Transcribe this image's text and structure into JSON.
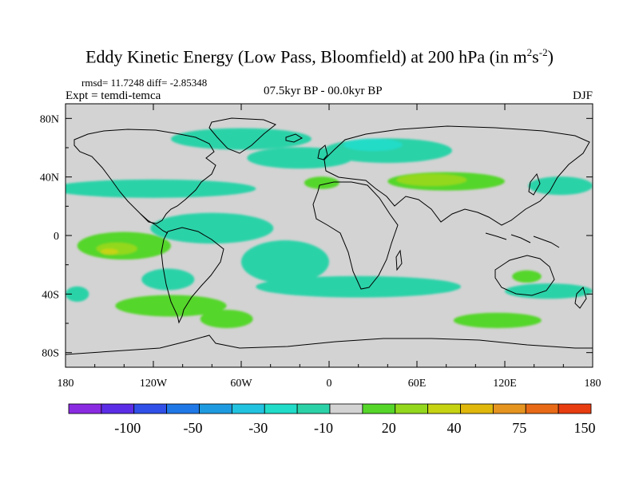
{
  "chart_data": {
    "type": "heatmap",
    "title_main": "Eddy Kinetic Energy (Low Pass, Bloomfield) at 200 hPa (in m",
    "title_exp1": "2",
    "title_s": "s",
    "title_exp2": "-2",
    "title_close": ")",
    "stats": "rmsd= 11.7248 diff= -2.85348",
    "expt": "Expt = temdi-temca",
    "period": "07.5kyr BP - 00.0kyr BP",
    "season": "DJF",
    "x_ticks": [
      "180",
      "120W",
      "60W",
      "0",
      "60E",
      "120E",
      "180"
    ],
    "x_tick_values": [
      -180,
      -120,
      -60,
      0,
      60,
      120,
      180
    ],
    "y_ticks": [
      "80N",
      "40N",
      "0",
      "40S",
      "80S"
    ],
    "y_tick_values": [
      80,
      40,
      0,
      -40,
      -80
    ],
    "xlim": [
      -180,
      180
    ],
    "ylim": [
      -90,
      90
    ],
    "colorbar": {
      "colors": [
        "#8a2be2",
        "#5b2de6",
        "#3050e8",
        "#1f78e6",
        "#1e9be0",
        "#22c3e0",
        "#20dcc8",
        "#2bd2a8",
        "#d3d3d3",
        "#55d629",
        "#93d81d",
        "#c6d312",
        "#e0b80c",
        "#e59420",
        "#e86a16",
        "#e83d10"
      ],
      "labels": [
        "-100",
        "-50",
        "-30",
        "-10",
        "20",
        "40",
        "75",
        "150"
      ],
      "label_after_box": [
        2,
        4,
        6,
        8,
        10,
        12,
        14,
        16
      ]
    },
    "features": [
      {
        "lon": -120,
        "lat": 32,
        "rx": 70,
        "ry": 6,
        "level": -1
      },
      {
        "lon": -60,
        "lat": 66,
        "rx": 48,
        "ry": 7,
        "level": -1
      },
      {
        "lon": -20,
        "lat": 53,
        "rx": 36,
        "ry": 7,
        "level": -1
      },
      {
        "lon": 40,
        "lat": 58,
        "rx": 44,
        "ry": 8,
        "level": -1
      },
      {
        "lon": 30,
        "lat": 62,
        "rx": 20,
        "ry": 4,
        "level": -2
      },
      {
        "lon": 158,
        "lat": 34,
        "rx": 22,
        "ry": 6,
        "level": -1
      },
      {
        "lon": -80,
        "lat": 5,
        "rx": 42,
        "ry": 10,
        "level": -1
      },
      {
        "lon": -30,
        "lat": -18,
        "rx": 30,
        "ry": 14,
        "level": -1
      },
      {
        "lon": -110,
        "lat": -30,
        "rx": 18,
        "ry": 7,
        "level": -1
      },
      {
        "lon": 20,
        "lat": -35,
        "rx": 70,
        "ry": 7,
        "level": -1
      },
      {
        "lon": 150,
        "lat": -38,
        "rx": 30,
        "ry": 5,
        "level": -1
      },
      {
        "lon": -172,
        "lat": -40,
        "rx": 8,
        "ry": 5,
        "level": -1
      },
      {
        "lon": 80,
        "lat": 37,
        "rx": 40,
        "ry": 6,
        "level": 1
      },
      {
        "lon": 70,
        "lat": 38,
        "rx": 24,
        "ry": 4,
        "level": 2
      },
      {
        "lon": -5,
        "lat": 36,
        "rx": 12,
        "ry": 4,
        "level": 1
      },
      {
        "lon": -140,
        "lat": -7,
        "rx": 32,
        "ry": 9,
        "level": 1
      },
      {
        "lon": -145,
        "lat": -9,
        "rx": 14,
        "ry": 4,
        "level": 2
      },
      {
        "lon": -150,
        "lat": -11,
        "rx": 6,
        "ry": 2,
        "level": 3
      },
      {
        "lon": -108,
        "lat": -48,
        "rx": 38,
        "ry": 7,
        "level": 1
      },
      {
        "lon": -70,
        "lat": -57,
        "rx": 18,
        "ry": 6,
        "level": 1
      },
      {
        "lon": 115,
        "lat": -58,
        "rx": 30,
        "ry": 5,
        "level": 1
      },
      {
        "lon": 135,
        "lat": -28,
        "rx": 10,
        "ry": 4,
        "level": 1
      }
    ]
  }
}
